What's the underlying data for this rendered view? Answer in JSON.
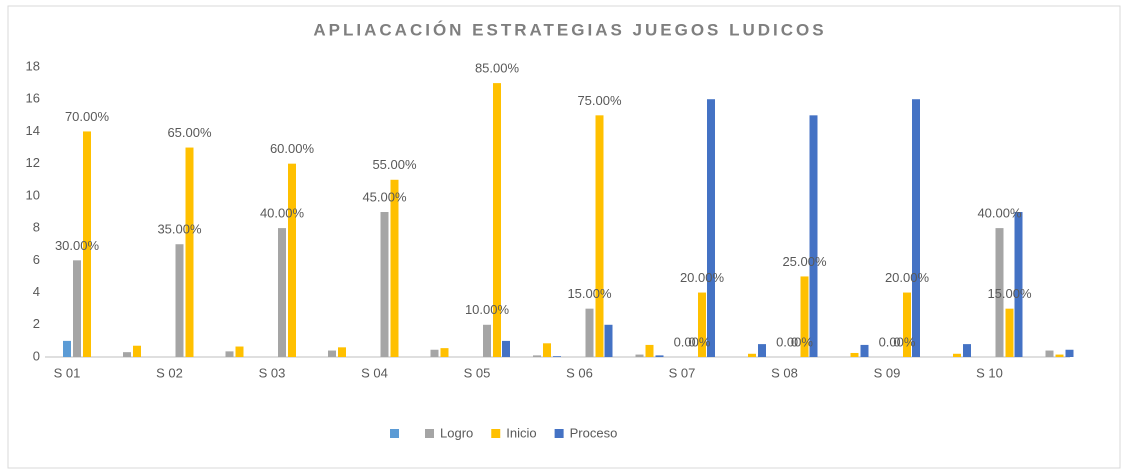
{
  "chart_data": {
    "type": "bar",
    "title": "APLIACACIÓN ESTRATEGIAS JUEGOS LUDICOS",
    "categories": [
      "S 01",
      "S 02",
      "S 03",
      "S 04",
      "S 05",
      "S 06",
      "S 07",
      "S 08",
      "S 09",
      "S 10"
    ],
    "ylim": [
      0,
      18
    ],
    "yticks": [
      0,
      2,
      4,
      6,
      8,
      10,
      12,
      14,
      16,
      18
    ],
    "grid": false,
    "legend": "bottom",
    "series": [
      {
        "color": "#5b9bd5",
        "values": [
          1,
          null,
          null,
          null,
          null,
          null,
          null,
          null,
          null,
          null
        ]
      },
      {
        "name": "Logro",
        "color": "#a5a5a5",
        "values": [
          6,
          7,
          8,
          9,
          2,
          3,
          0,
          0,
          0,
          8
        ],
        "value_labels": [
          null,
          null,
          null,
          null,
          null,
          null,
          "0",
          "0",
          "0",
          null
        ]
      },
      {
        "name": "Inicio",
        "color": "#ffc000",
        "values": [
          14,
          13,
          12,
          11,
          17,
          15,
          4,
          5,
          4,
          3
        ]
      },
      {
        "name": "Proceso",
        "color": "#4472c4",
        "values": [
          0,
          0,
          0,
          0,
          1,
          2,
          16,
          15,
          16,
          9
        ]
      },
      {
        "color": "#a5a5a5",
        "values": [
          0.3,
          0.35,
          0.4,
          0.45,
          0.1,
          0.15,
          0,
          0,
          0,
          0.4
        ],
        "value_labels": [
          "30.00%",
          "35.00%",
          "40.00%",
          "45.00%",
          "10.00%",
          "15.00%",
          "0.00%",
          "0.00%",
          "0.00%",
          "40.00%"
        ]
      },
      {
        "color": "#ffc000",
        "values": [
          0.7,
          0.65,
          0.6,
          0.55,
          0.85,
          0.75,
          0.2,
          0.25,
          0.2,
          0.15
        ],
        "value_labels": [
          "70.00%",
          "65.00%",
          "60.00%",
          "55.00%",
          "85.00%",
          "75.00%",
          "20.00%",
          "25.00%",
          "20.00%",
          "15.00%"
        ]
      },
      {
        "color": "#4472c4",
        "values": [
          0,
          0,
          0,
          0,
          0.05,
          0.1,
          0.8,
          0.75,
          0.8,
          0.45
        ]
      }
    ]
  }
}
